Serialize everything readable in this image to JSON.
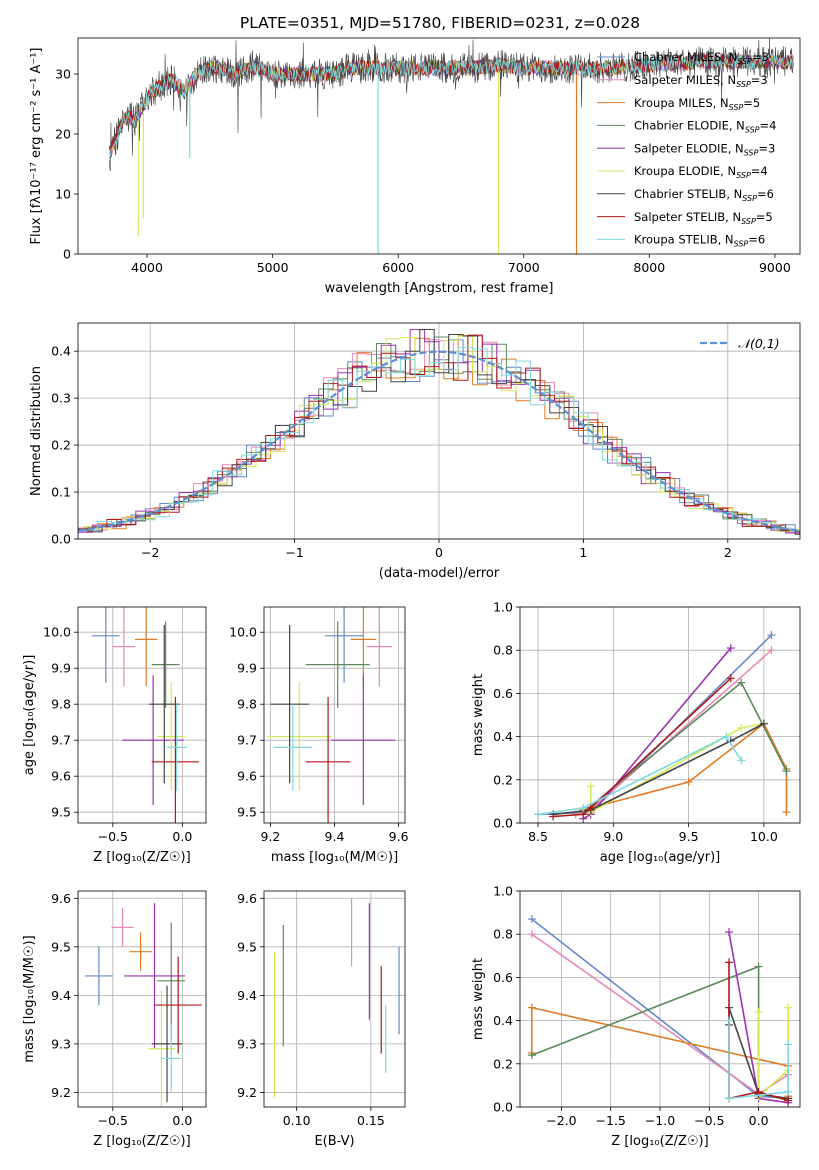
{
  "figure": {
    "title": "PLATE=0351, MJD=51780, FIBERID=0231, z=0.028"
  },
  "model_series": [
    {
      "name": "Chabrier MILES",
      "nssp": "3",
      "color": "#6688cc"
    },
    {
      "name": "Salpeter MILES",
      "nssp": "3",
      "color": "#e889b8"
    },
    {
      "name": "Kroupa MILES",
      "nssp": "5",
      "color": "#e07b28"
    },
    {
      "name": "Chabrier ELODIE",
      "nssp": "4",
      "color": "#5b8a5b"
    },
    {
      "name": "Salpeter ELODIE",
      "nssp": "3",
      "color": "#9b30b0"
    },
    {
      "name": "Kroupa ELODIE",
      "nssp": "4",
      "color": "#d4e85a"
    },
    {
      "name": "Chabrier STELIB",
      "nssp": "6",
      "color": "#444444"
    },
    {
      "name": "Salpeter STELIB",
      "nssp": "5",
      "color": "#b01818"
    },
    {
      "name": "Kroupa STELIB",
      "nssp": "6",
      "color": "#7fd8e0"
    }
  ],
  "chart_data": [
    {
      "id": "spectrum",
      "type": "line",
      "xlabel": "wavelength [Angstrom, rest frame]",
      "ylabel": "Flux [fλ10⁻¹⁷ erg cm⁻² s⁻¹ A⁻¹]",
      "xlim": [
        3450,
        9200
      ],
      "ylim": [
        0,
        36
      ],
      "xticks": [
        4000,
        5000,
        6000,
        7000,
        8000,
        9000
      ],
      "yticks": [
        0,
        10,
        20,
        30
      ],
      "legend": "top-right",
      "continuum": [
        [
          3700,
          17
        ],
        [
          3750,
          19
        ],
        [
          3800,
          22
        ],
        [
          3850,
          23
        ],
        [
          3900,
          22
        ],
        [
          3950,
          24
        ],
        [
          4000,
          26
        ],
        [
          4100,
          28
        ],
        [
          4200,
          29
        ],
        [
          4300,
          27
        ],
        [
          4400,
          30
        ],
        [
          4500,
          31
        ],
        [
          4600,
          31
        ],
        [
          4700,
          30
        ],
        [
          4800,
          31
        ],
        [
          4900,
          31
        ],
        [
          5000,
          30
        ],
        [
          5100,
          30
        ],
        [
          5200,
          30
        ],
        [
          5300,
          30
        ],
        [
          5400,
          30
        ],
        [
          5500,
          30
        ],
        [
          5600,
          31
        ],
        [
          5800,
          31
        ],
        [
          6000,
          31
        ],
        [
          6200,
          31
        ],
        [
          6400,
          31
        ],
        [
          6600,
          31
        ],
        [
          6800,
          31.5
        ],
        [
          7000,
          31
        ],
        [
          7200,
          31
        ],
        [
          7400,
          31
        ],
        [
          7700,
          31
        ],
        [
          8000,
          31.5
        ],
        [
          8400,
          32
        ],
        [
          8800,
          32
        ],
        [
          9150,
          32
        ]
      ],
      "dips": [
        [
          3930,
          3,
          "#d4e85a"
        ],
        [
          3970,
          6,
          "#d4e85a"
        ],
        [
          4340,
          16,
          "#7fd8e0"
        ],
        [
          5840,
          0,
          "#7fd8e0"
        ],
        [
          6800,
          0,
          "#d4e85a"
        ],
        [
          7420,
          0,
          "#e07b28"
        ]
      ]
    },
    {
      "id": "residuals",
      "type": "histogram",
      "xlabel": "(data-model)/error",
      "ylabel": "Normed distribution",
      "xlim": [
        -2.5,
        2.5
      ],
      "ylim": [
        0,
        0.46
      ],
      "xticks": [
        -2,
        -1,
        0,
        1,
        2
      ],
      "yticks": [
        0.0,
        0.1,
        0.2,
        0.3,
        0.4
      ],
      "reference_label": "𝒩(0,1)",
      "reference_color": "#5b8fd6",
      "bin_width": 0.1
    },
    {
      "id": "age-vs-Z",
      "type": "scatter",
      "xlabel": "Z [log₁₀(Z/Z☉)]",
      "ylabel": "age  [log₁₀(age/yr)]",
      "xlim": [
        -0.75,
        0.17
      ],
      "ylim": [
        9.47,
        10.07
      ],
      "xticks": [
        -0.5,
        0.0
      ],
      "yticks": [
        9.5,
        9.6,
        9.7,
        9.8,
        9.9,
        10.0
      ],
      "points": [
        {
          "x": -0.55,
          "y": 9.99,
          "xerr": 0.1,
          "yerr": 0.13,
          "c": 0
        },
        {
          "x": -0.42,
          "y": 9.96,
          "xerr": 0.08,
          "yerr": 0.11,
          "c": 1
        },
        {
          "x": -0.26,
          "y": 9.98,
          "xerr": 0.08,
          "yerr": 0.13,
          "c": 2
        },
        {
          "x": -0.12,
          "y": 9.91,
          "xerr": 0.1,
          "yerr": 0.12,
          "c": 3
        },
        {
          "x": -0.21,
          "y": 9.7,
          "xerr": 0.22,
          "yerr": 0.18,
          "c": 4
        },
        {
          "x": -0.08,
          "y": 9.71,
          "xerr": 0.1,
          "yerr": 0.15,
          "c": 5
        },
        {
          "x": -0.13,
          "y": 9.8,
          "xerr": 0.11,
          "yerr": 0.22,
          "c": 6
        },
        {
          "x": -0.05,
          "y": 9.64,
          "xerr": 0.17,
          "yerr": 0.18,
          "c": 7
        },
        {
          "x": -0.04,
          "y": 9.68,
          "xerr": 0.07,
          "yerr": 0.12,
          "c": 8
        }
      ]
    },
    {
      "id": "age-vs-mass",
      "type": "scatter",
      "xlabel": "mass [log₁₀(M/M☉)]",
      "ylabel": "",
      "xlim": [
        9.18,
        9.62
      ],
      "ylim": [
        9.47,
        10.07
      ],
      "xticks": [
        9.2,
        9.4,
        9.6
      ],
      "yticks": [
        9.5,
        9.6,
        9.7,
        9.8,
        9.9,
        10.0
      ],
      "points": [
        {
          "x": 9.43,
          "y": 9.99,
          "xerr": 0.06,
          "yerr": 0.13,
          "c": 0
        },
        {
          "x": 9.54,
          "y": 9.96,
          "xerr": 0.04,
          "yerr": 0.11,
          "c": 1
        },
        {
          "x": 9.49,
          "y": 9.98,
          "xerr": 0.04,
          "yerr": 0.13,
          "c": 2
        },
        {
          "x": 9.41,
          "y": 9.91,
          "xerr": 0.1,
          "yerr": 0.12,
          "c": 3
        },
        {
          "x": 9.49,
          "y": 9.7,
          "xerr": 0.1,
          "yerr": 0.18,
          "c": 4
        },
        {
          "x": 9.29,
          "y": 9.71,
          "xerr": 0.1,
          "yerr": 0.15,
          "c": 5
        },
        {
          "x": 9.26,
          "y": 9.8,
          "xerr": 0.06,
          "yerr": 0.22,
          "c": 6
        },
        {
          "x": 9.38,
          "y": 9.64,
          "xerr": 0.07,
          "yerr": 0.18,
          "c": 7
        },
        {
          "x": 9.27,
          "y": 9.68,
          "xerr": 0.06,
          "yerr": 0.12,
          "c": 8
        }
      ]
    },
    {
      "id": "massweight-vs-age",
      "type": "line",
      "xlabel": "age  [log₁₀(age/yr)]",
      "ylabel": "mass weight",
      "xlim": [
        8.38,
        10.24
      ],
      "ylim": [
        0,
        1
      ],
      "xticks": [
        8.5,
        9.0,
        9.5,
        10.0
      ],
      "yticks": [
        0.0,
        0.2,
        0.4,
        0.6,
        0.8,
        1.0
      ],
      "series": [
        {
          "c": 0,
          "x": [
            8.5,
            8.85,
            10.05
          ],
          "y": [
            0.04,
            0.05,
            0.87
          ]
        },
        {
          "c": 1,
          "x": [
            8.75,
            8.85,
            10.05
          ],
          "y": [
            0.04,
            0.06,
            0.8
          ]
        },
        {
          "c": 2,
          "x": [
            8.8,
            9.5,
            10.0,
            10.15,
            10.15
          ],
          "y": [
            0.06,
            0.19,
            0.46,
            0.25,
            0.05
          ]
        },
        {
          "c": 3,
          "x": [
            8.8,
            9.85,
            10.15
          ],
          "y": [
            0.05,
            0.65,
            0.24
          ]
        },
        {
          "c": 4,
          "x": [
            8.8,
            8.85,
            9.78
          ],
          "y": [
            0.02,
            0.04,
            0.81
          ]
        },
        {
          "c": 5,
          "x": [
            8.85,
            8.85,
            9.85,
            10.0
          ],
          "y": [
            0.17,
            0.05,
            0.44,
            0.46
          ]
        },
        {
          "c": 6,
          "x": [
            8.6,
            8.85,
            9.78,
            10.0
          ],
          "y": [
            0.04,
            0.06,
            0.38,
            0.46
          ]
        },
        {
          "c": 7,
          "x": [
            8.6,
            8.8,
            8.85,
            9.78
          ],
          "y": [
            0.03,
            0.04,
            0.07,
            0.67
          ]
        },
        {
          "c": 8,
          "x": [
            8.5,
            8.8,
            9.75,
            9.85
          ],
          "y": [
            0.04,
            0.07,
            0.4,
            0.29
          ]
        }
      ]
    },
    {
      "id": "mass-vs-Z",
      "type": "scatter",
      "xlabel": "Z [log₁₀(Z/Z☉)]",
      "ylabel": "mass [log₁₀(M/M☉)]",
      "xlim": [
        -0.75,
        0.17
      ],
      "ylim": [
        9.17,
        9.615
      ],
      "xticks": [
        -0.5,
        0.0
      ],
      "yticks": [
        9.2,
        9.3,
        9.4,
        9.5,
        9.6
      ],
      "points": [
        {
          "x": -0.6,
          "y": 9.44,
          "xerr": 0.1,
          "yerr": 0.06,
          "c": 0
        },
        {
          "x": -0.43,
          "y": 9.54,
          "xerr": 0.08,
          "yerr": 0.04,
          "c": 1
        },
        {
          "x": -0.3,
          "y": 9.49,
          "xerr": 0.08,
          "yerr": 0.04,
          "c": 2
        },
        {
          "x": -0.08,
          "y": 9.43,
          "xerr": 0.1,
          "yerr": 0.12,
          "c": 3
        },
        {
          "x": -0.2,
          "y": 9.44,
          "xerr": 0.22,
          "yerr": 0.15,
          "c": 4
        },
        {
          "x": -0.15,
          "y": 9.29,
          "xerr": 0.1,
          "yerr": 0.12,
          "c": 5
        },
        {
          "x": -0.11,
          "y": 9.3,
          "xerr": 0.11,
          "yerr": 0.12,
          "c": 6
        },
        {
          "x": -0.03,
          "y": 9.38,
          "xerr": 0.17,
          "yerr": 0.1,
          "c": 7
        },
        {
          "x": -0.08,
          "y": 9.27,
          "xerr": 0.07,
          "yerr": 0.07,
          "c": 8
        }
      ]
    },
    {
      "id": "mass-vs-ebv",
      "type": "scatter",
      "xlabel": "E(B-V)",
      "ylabel": "",
      "xlim": [
        0.078,
        0.173
      ],
      "ylim": [
        9.17,
        9.615
      ],
      "xticks": [
        0.1,
        0.15
      ],
      "yticks": [
        9.2,
        9.3,
        9.4,
        9.5,
        9.6
      ],
      "points": [
        {
          "x": 0.169,
          "y": 9.41,
          "xerr": 0,
          "yerr": 0.09,
          "c": 0
        },
        {
          "x": 0.137,
          "y": 9.53,
          "xerr": 0,
          "yerr": 0.07,
          "c": 1
        },
        {
          "x": 0.157,
          "y": 9.37,
          "xerr": 0,
          "yerr": 0.09,
          "c": 7
        },
        {
          "x": 0.149,
          "y": 9.47,
          "xerr": 0,
          "yerr": 0.12,
          "c": 4
        },
        {
          "x": 0.091,
          "y": 9.42,
          "xerr": 0,
          "yerr": 0.125,
          "c": 3
        },
        {
          "x": 0.085,
          "y": 9.34,
          "xerr": 0,
          "yerr": 0.15,
          "c": 5
        },
        {
          "x": 0.16,
          "y": 9.31,
          "xerr": 0,
          "yerr": 0.07,
          "c": 8
        }
      ]
    },
    {
      "id": "massweight-vs-Z",
      "type": "line",
      "xlabel": "Z [log₁₀(Z/Z☉)]",
      "ylabel": "mass weight",
      "xlim": [
        -2.42,
        0.42
      ],
      "ylim": [
        0,
        1
      ],
      "xticks": [
        -2.0,
        -1.5,
        -1.0,
        -0.5,
        0.0
      ],
      "yticks": [
        0.0,
        0.2,
        0.4,
        0.6,
        0.8,
        1.0
      ],
      "series": [
        {
          "c": 0,
          "x": [
            -2.3,
            0.0,
            0.3
          ],
          "y": [
            0.87,
            0.05,
            0.04
          ]
        },
        {
          "c": 1,
          "x": [
            -2.3,
            0.0,
            0.3
          ],
          "y": [
            0.8,
            0.06,
            0.15
          ]
        },
        {
          "c": 2,
          "x": [
            -2.3,
            -2.3,
            0.3,
            0.3
          ],
          "y": [
            0.25,
            0.46,
            0.19,
            0.05
          ]
        },
        {
          "c": 3,
          "x": [
            -2.3,
            0.0,
            0.0
          ],
          "y": [
            0.24,
            0.65,
            0.05
          ]
        },
        {
          "c": 4,
          "x": [
            -0.3,
            0.0,
            0.3
          ],
          "y": [
            0.81,
            0.04,
            0.02
          ]
        },
        {
          "c": 5,
          "x": [
            0.0,
            0.0,
            0.3,
            0.3
          ],
          "y": [
            0.44,
            0.05,
            0.17,
            0.46
          ]
        },
        {
          "c": 6,
          "x": [
            -0.3,
            -0.3,
            0.0,
            0.3
          ],
          "y": [
            0.38,
            0.46,
            0.06,
            0.04
          ]
        },
        {
          "c": 7,
          "x": [
            -0.3,
            -0.3,
            0.0,
            0.3
          ],
          "y": [
            0.67,
            0.04,
            0.07,
            0.03
          ]
        },
        {
          "c": 8,
          "x": [
            -0.3,
            -0.3,
            0.3,
            0.3
          ],
          "y": [
            0.4,
            0.04,
            0.07,
            0.29
          ]
        }
      ]
    }
  ]
}
